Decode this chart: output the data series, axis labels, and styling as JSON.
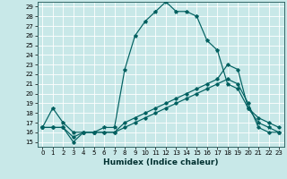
{
  "title": "",
  "xlabel": "Humidex (Indice chaleur)",
  "bg_color": "#c8e8e8",
  "grid_color": "#ffffff",
  "line_color": "#006060",
  "xlim": [
    -0.5,
    23.5
  ],
  "ylim": [
    14.5,
    29.5
  ],
  "xticks": [
    0,
    1,
    2,
    3,
    4,
    5,
    6,
    7,
    8,
    9,
    10,
    11,
    12,
    13,
    14,
    15,
    16,
    17,
    18,
    19,
    20,
    21,
    22,
    23
  ],
  "yticks": [
    15,
    16,
    17,
    18,
    19,
    20,
    21,
    22,
    23,
    24,
    25,
    26,
    27,
    28,
    29
  ],
  "series1_x": [
    0,
    1,
    2,
    3,
    4,
    5,
    6,
    7,
    8,
    9,
    10,
    11,
    12,
    13,
    14,
    15,
    16,
    17,
    18,
    19,
    20,
    21,
    22,
    23
  ],
  "series1_y": [
    16.5,
    18.5,
    17.0,
    16.0,
    16.0,
    16.0,
    16.5,
    16.5,
    22.5,
    26.0,
    27.5,
    28.5,
    29.5,
    28.5,
    28.5,
    28.0,
    25.5,
    24.5,
    21.0,
    20.5,
    18.5,
    17.0,
    16.5,
    16.0
  ],
  "series2_x": [
    0,
    1,
    2,
    3,
    4,
    5,
    6,
    7,
    8,
    9,
    10,
    11,
    12,
    13,
    14,
    15,
    16,
    17,
    18,
    19,
    20,
    21,
    22,
    23
  ],
  "series2_y": [
    16.5,
    16.5,
    16.5,
    15.5,
    16.0,
    16.0,
    16.0,
    16.0,
    16.5,
    17.0,
    17.5,
    18.0,
    18.5,
    19.0,
    19.5,
    20.0,
    20.5,
    21.0,
    21.5,
    21.0,
    19.0,
    16.5,
    16.0,
    16.0
  ],
  "series3_x": [
    0,
    1,
    2,
    3,
    4,
    5,
    6,
    7,
    8,
    9,
    10,
    11,
    12,
    13,
    14,
    15,
    16,
    17,
    18,
    19,
    20,
    21,
    22,
    23
  ],
  "series3_y": [
    16.5,
    16.5,
    16.5,
    15.0,
    16.0,
    16.0,
    16.0,
    16.0,
    17.0,
    17.5,
    18.0,
    18.5,
    19.0,
    19.5,
    20.0,
    20.5,
    21.0,
    21.5,
    23.0,
    22.5,
    18.5,
    17.5,
    17.0,
    16.5
  ],
  "xlabel_fontsize": 6.5,
  "tick_fontsize": 5.0,
  "lw": 0.85,
  "ms": 2.2
}
